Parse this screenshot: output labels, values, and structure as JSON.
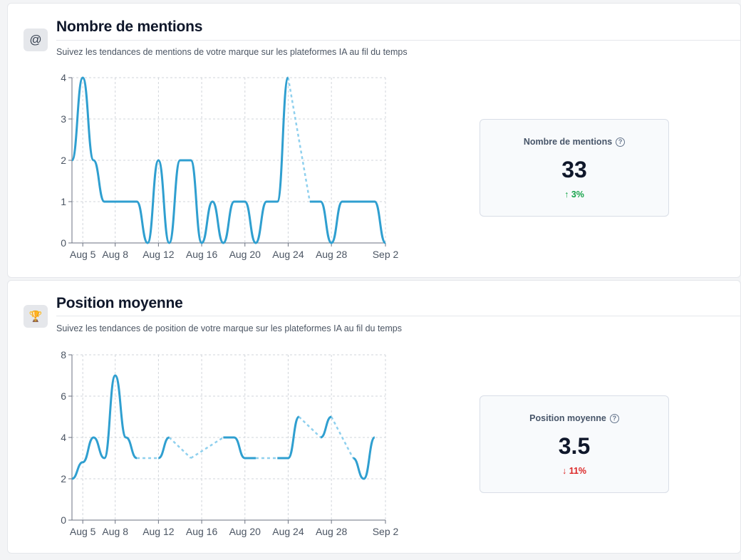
{
  "mentions": {
    "icon": "at-sign-icon",
    "icon_glyph": "@",
    "title": "Nombre de mentions",
    "subtitle": "Suivez les tendances de mentions de votre marque sur les plateformes IA au fil du temps",
    "stat": {
      "label": "Nombre de mentions",
      "value": "33",
      "change": "↑ 3%",
      "change_color": "#16a34a"
    }
  },
  "position": {
    "icon": "trophy-icon",
    "icon_glyph": "🏆",
    "title": "Position moyenne",
    "subtitle": "Suivez les tendances de position de votre marque sur les plateformes IA au fil du temps",
    "stat": {
      "label": "Position moyenne",
      "value": "3.5",
      "change": "↓ 11%",
      "change_color": "#dc2626"
    }
  },
  "chart_data": [
    {
      "type": "line",
      "x_ticks": [
        "Aug 5",
        "Aug 8",
        "Aug 12",
        "Aug 16",
        "Aug 20",
        "Aug 24",
        "Aug 28",
        "Sep 2"
      ],
      "x": [
        "Aug 4",
        "Aug 5",
        "Aug 6",
        "Aug 7",
        "Aug 8",
        "Aug 9",
        "Aug 10",
        "Aug 11",
        "Aug 12",
        "Aug 13",
        "Aug 14",
        "Aug 15",
        "Aug 16",
        "Aug 17",
        "Aug 18",
        "Aug 19",
        "Aug 20",
        "Aug 21",
        "Aug 22",
        "Aug 23",
        "Aug 24",
        "Aug 25",
        "Aug 26",
        "Aug 27",
        "Aug 28",
        "Aug 29",
        "Aug 30",
        "Aug 31",
        "Sep 1",
        "Sep 2"
      ],
      "values": [
        2,
        4,
        2,
        1,
        1,
        1,
        1,
        0,
        2,
        0,
        2,
        2,
        0,
        1,
        0,
        1,
        1,
        0,
        1,
        1,
        4,
        null,
        1,
        1,
        0,
        1,
        1,
        1,
        1,
        0
      ],
      "y_ticks": [
        0,
        1,
        2,
        3,
        4
      ],
      "ylim": [
        0,
        4
      ],
      "grid": true,
      "color": "#2f9fd0"
    },
    {
      "type": "line",
      "x_ticks": [
        "Aug 5",
        "Aug 8",
        "Aug 12",
        "Aug 16",
        "Aug 20",
        "Aug 24",
        "Aug 28",
        "Sep 2"
      ],
      "x": [
        "Aug 4",
        "Aug 5",
        "Aug 6",
        "Aug 7",
        "Aug 8",
        "Aug 9",
        "Aug 10",
        "Aug 11",
        "Aug 12",
        "Aug 13",
        "Aug 14",
        "Aug 15",
        "Aug 16",
        "Aug 17",
        "Aug 18",
        "Aug 19",
        "Aug 20",
        "Aug 21",
        "Aug 22",
        "Aug 23",
        "Aug 24",
        "Aug 25",
        "Aug 26",
        "Aug 27",
        "Aug 28",
        "Aug 29",
        "Aug 30",
        "Aug 31",
        "Sep 1",
        "Sep 2"
      ],
      "values": [
        2,
        2.8,
        4,
        3,
        7,
        4,
        3,
        null,
        3,
        4,
        null,
        3,
        null,
        null,
        4,
        4,
        3,
        3,
        null,
        3,
        3,
        5,
        null,
        4,
        5,
        null,
        3,
        2,
        4,
        null
      ],
      "y_ticks": [
        0,
        2,
        4,
        6,
        8
      ],
      "ylim": [
        0,
        8
      ],
      "grid": true,
      "color": "#2f9fd0"
    }
  ]
}
